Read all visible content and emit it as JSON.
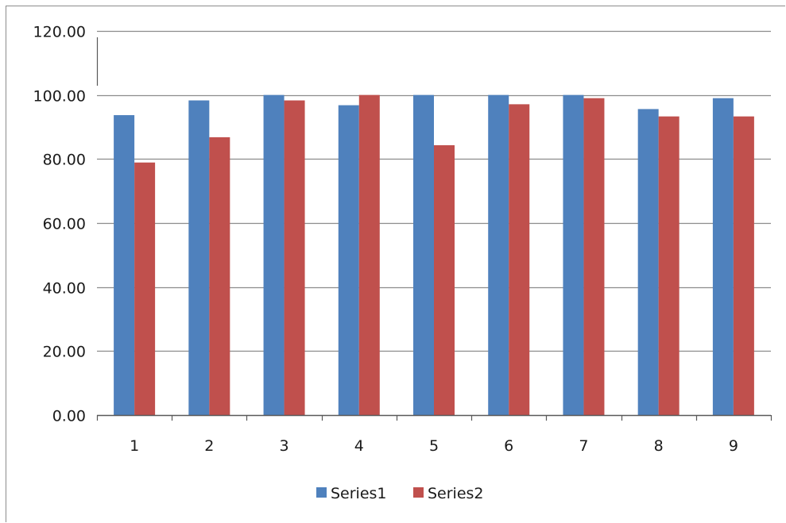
{
  "chart_data": {
    "type": "bar",
    "categories": [
      "1",
      "2",
      "3",
      "4",
      "5",
      "6",
      "7",
      "8",
      "9"
    ],
    "series": [
      {
        "name": "Series1",
        "color": "#4f81bd",
        "values": [
          93.7,
          98.3,
          100.0,
          96.8,
          100.0,
          100.0,
          100.0,
          95.6,
          99.0
        ]
      },
      {
        "name": "Series2",
        "color": "#c0504d",
        "values": [
          78.9,
          86.8,
          98.3,
          100.0,
          84.3,
          97.1,
          99.0,
          93.3,
          93.3
        ]
      }
    ],
    "yticks": [
      "0.00",
      "20.00",
      "40.00",
      "60.00",
      "80.00",
      "100.00",
      "120.00"
    ],
    "ylim": [
      0,
      120
    ],
    "title": "",
    "xlabel": "",
    "ylabel": "",
    "grid": true,
    "legend_position": "bottom"
  }
}
